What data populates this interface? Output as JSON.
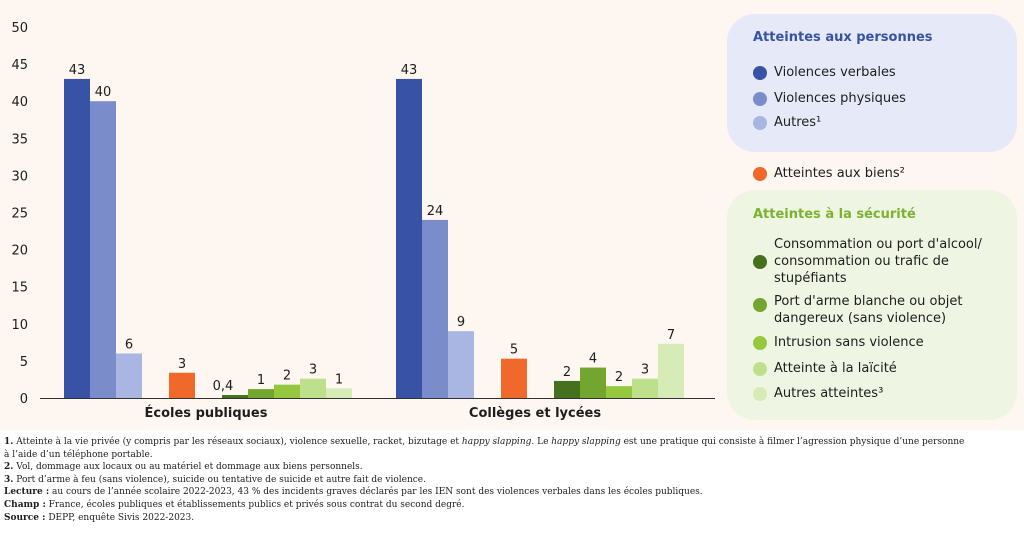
{
  "chart_data": {
    "type": "bar",
    "ylim": [
      0,
      50
    ],
    "yticks": [
      0,
      5,
      10,
      15,
      20,
      25,
      30,
      35,
      40,
      45,
      50
    ],
    "categories": [
      "Écoles publiques",
      "Collèges et lycées"
    ],
    "series": [
      {
        "name": "Violences verbales",
        "color": "#3853a6",
        "values": [
          43,
          43
        ],
        "labels": [
          "43",
          "43"
        ]
      },
      {
        "name": "Violences physiques",
        "color": "#7b8ccb",
        "values": [
          40,
          24
        ],
        "labels": [
          "40",
          "24"
        ]
      },
      {
        "name": "Autres¹",
        "color": "#a9b6e2",
        "values": [
          6,
          9
        ],
        "labels": [
          "6",
          "9"
        ]
      },
      {
        "name": "Atteintes aux biens²",
        "color": "#f0682a",
        "values": [
          3.4,
          5.3
        ],
        "labels": [
          "3",
          "5"
        ]
      },
      {
        "name": "Consommation ou port d'alcool/ consommation ou trafic de stupéfiants",
        "color": "#45701e",
        "values": [
          0.4,
          2.3
        ],
        "labels": [
          "0,4",
          "2"
        ]
      },
      {
        "name": "Port d'arme blanche ou objet dangereux (sans violence)",
        "color": "#72a62e",
        "values": [
          1.2,
          4.1
        ],
        "labels": [
          "1",
          "4"
        ]
      },
      {
        "name": "Intrusion sans violence",
        "color": "#95c83e",
        "values": [
          1.8,
          1.6
        ],
        "labels": [
          "2",
          "2"
        ]
      },
      {
        "name": "Atteinte à la laïcité",
        "color": "#bfe08a",
        "values": [
          2.6,
          2.6
        ],
        "labels": [
          "3",
          "3"
        ]
      },
      {
        "name": "Autres atteintes³",
        "color": "#d6ebb5",
        "values": [
          1.3,
          7.3
        ],
        "labels": [
          "1",
          "7"
        ]
      }
    ]
  },
  "legend": {
    "personnes_title": "Atteintes aux personnes",
    "personnes_title_color": "#3853a6",
    "items_personnes": [
      {
        "label": "Violences verbales",
        "color": "#3853a6"
      },
      {
        "label": "Violences physiques",
        "color": "#7b8ccb"
      },
      {
        "label": "Autres¹",
        "color": "#a9b6e2"
      }
    ],
    "biens": {
      "label": "Atteintes aux biens²",
      "color": "#f0682a"
    },
    "securite_title": "Atteintes à la sécurité",
    "securite_title_color": "#7ab32e",
    "items_securite": [
      {
        "label": "Consommation ou port d'alcool/ consommation ou trafic de stupéfiants",
        "color": "#45701e"
      },
      {
        "label": "Port d'arme blanche ou objet dangereux (sans violence)",
        "color": "#72a62e"
      },
      {
        "label": "Intrusion sans violence",
        "color": "#95c83e"
      },
      {
        "label": "Atteinte à la laïcité",
        "color": "#bfe08a"
      },
      {
        "label": "Autres atteintes³",
        "color": "#d6ebb5"
      }
    ]
  },
  "notes": {
    "n1_num": "1.",
    "n1_text_a": " Atteinte à la vie privée (y compris par les réseaux sociaux), violence sexuelle, racket, bizutage et ",
    "n1_em1": "happy slapping",
    "n1_text_b": ". Le ",
    "n1_em2": "happy slapping",
    "n1_text_c": " est une pratique qui consiste à filmer l’agression physique d’une personne",
    "n1_text_d": "à l’aide d’un téléphone portable.",
    "n2_num": "2.",
    "n2_text": " Vol, dommage aux locaux ou au matériel et dommage aux biens personnels.",
    "n3_num": "3.",
    "n3_text": " Port d’arme à feu (sans violence), suicide ou tentative de suicide et autre fait de violence.",
    "lecture_label": "Lecture :",
    "lecture_text": " au cours de l’année scolaire 2022-2023, 43 % des incidents graves déclarés par les IEN sont des violences verbales dans les écoles publiques.",
    "champ_label": "Champ :",
    "champ_text": " France, écoles publiques et établissements publics et privés sous contrat du second degré.",
    "source_label": "Source :",
    "source_text": " DEPP, enquête Sivis 2022-2023."
  }
}
